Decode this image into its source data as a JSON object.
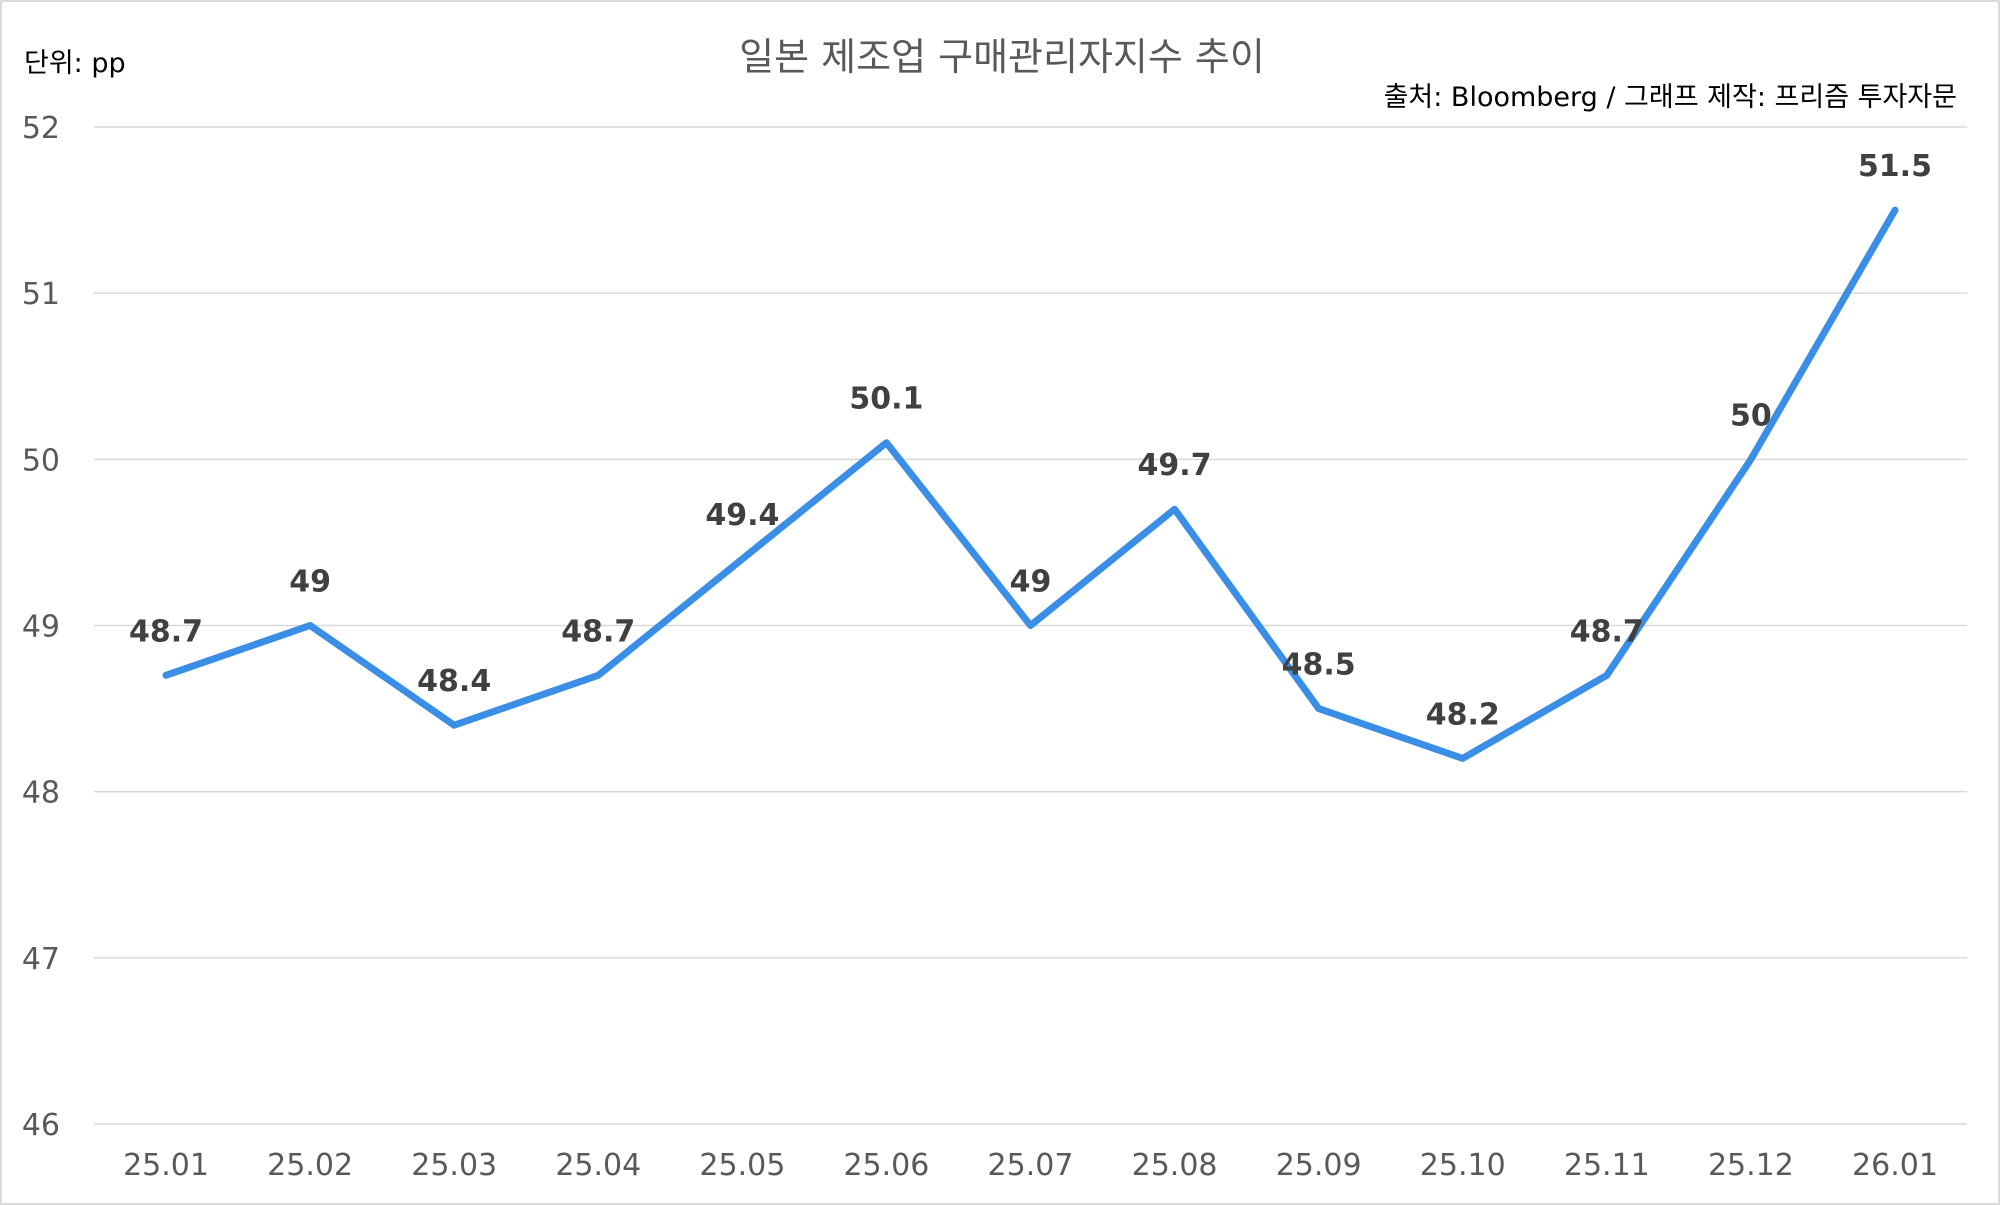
{
  "chart_data": {
    "type": "line",
    "title": "일본 제조업 구매관리자지수 추이",
    "unit_label": "단위: pp",
    "source_label": "출처: Bloomberg / 그래프 제작: 프리즘 투자자문",
    "categories": [
      "25.01",
      "25.02",
      "25.03",
      "25.04",
      "25.05",
      "25.06",
      "25.07",
      "25.08",
      "25.09",
      "25.10",
      "25.11",
      "25.12",
      "26.01"
    ],
    "series": [
      {
        "values": [
          48.7,
          49,
          48.4,
          48.7,
          49.4,
          50.1,
          49,
          49.7,
          48.5,
          48.2,
          48.7,
          50,
          51.5
        ],
        "color": "#3a8ee6"
      }
    ],
    "data_labels": [
      "48.7",
      "49",
      "48.4",
      "48.7",
      "49.4",
      "50.1",
      "49",
      "49.7",
      "48.5",
      "48.2",
      "48.7",
      "50",
      "51.5"
    ],
    "ylim": [
      46,
      52
    ],
    "yticks": [
      "46",
      "47",
      "48",
      "49",
      "50",
      "51",
      "52"
    ],
    "grid": true,
    "legend": "none"
  }
}
